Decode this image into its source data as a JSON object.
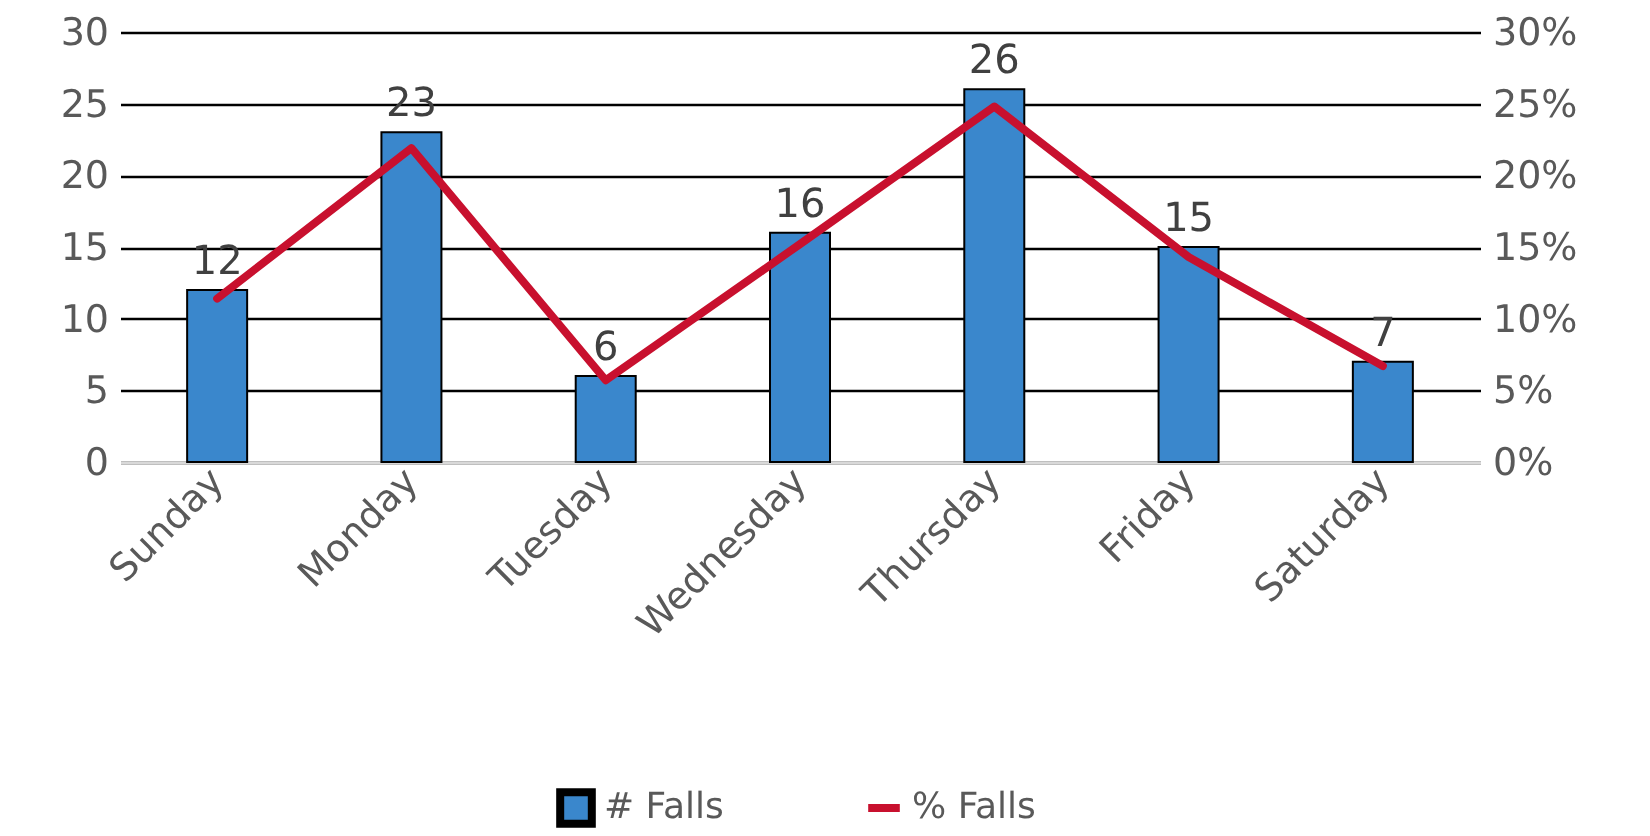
{
  "chart_data": {
    "type": "bar",
    "categories": [
      "Sunday",
      "Monday",
      "Tuesday",
      "Wednesday",
      "Thursday",
      "Friday",
      "Saturday"
    ],
    "series": [
      {
        "name": "# Falls",
        "color": "#3a87cc",
        "values": [
          12,
          23,
          6,
          16,
          26,
          15,
          7
        ],
        "value_labels": [
          "12",
          "23",
          "6",
          "16",
          "26",
          "15",
          "7"
        ]
      },
      {
        "name": "% Falls",
        "type": "line",
        "axis": "y2",
        "color": "#c8102e",
        "values": [
          11.4,
          21.9,
          5.7,
          15.2,
          24.8,
          14.3,
          6.7
        ]
      }
    ],
    "ylim": [
      0,
      30
    ],
    "yticks": [
      0,
      5,
      10,
      15,
      20,
      25,
      30
    ],
    "y2lim": [
      0,
      30
    ],
    "y2ticks": [
      {
        "value": 0,
        "label": "0%"
      },
      {
        "value": 5,
        "label": "5%"
      },
      {
        "value": 10,
        "label": "10%"
      },
      {
        "value": 15,
        "label": "15%"
      },
      {
        "value": 20,
        "label": "20%"
      },
      {
        "value": 25,
        "label": "25%"
      },
      {
        "value": 30,
        "label": "30%"
      }
    ],
    "grid": "y",
    "legend": "bottom"
  }
}
